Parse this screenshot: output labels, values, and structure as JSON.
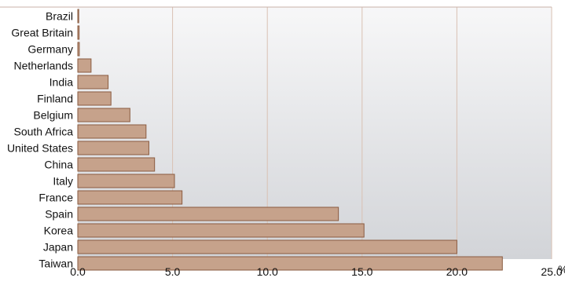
{
  "chart_data": {
    "type": "bar",
    "orientation": "horizontal",
    "title": "",
    "xlabel": "",
    "ylabel": "",
    "unit_label": "%",
    "xlim": [
      0,
      25
    ],
    "x_ticks": [
      "0.0",
      "5.0",
      "10.0",
      "15.0",
      "20.0",
      "25.0"
    ],
    "grid": true,
    "categories": [
      "Brazil",
      "Great Britain",
      "Germany",
      "Netherlands",
      "India",
      "Finland",
      "Belgium",
      "South Africa",
      "United States",
      "China",
      "Italy",
      "France",
      "Spain",
      "Korea",
      "Japan",
      "Taiwan"
    ],
    "values": [
      0.05,
      0.07,
      0.08,
      0.7,
      1.6,
      1.75,
      2.75,
      3.6,
      3.75,
      4.05,
      5.1,
      5.5,
      13.75,
      15.1,
      20.0,
      22.4
    ],
    "colors": {
      "bar_fill": "#c6a28b",
      "bar_stroke": "#8a5b40",
      "grid": "#d9c1b3",
      "frame": "#c8b2a8",
      "plot_bg_top": "#f7f7f8",
      "plot_bg_bottom": "#d2d4d8"
    }
  }
}
